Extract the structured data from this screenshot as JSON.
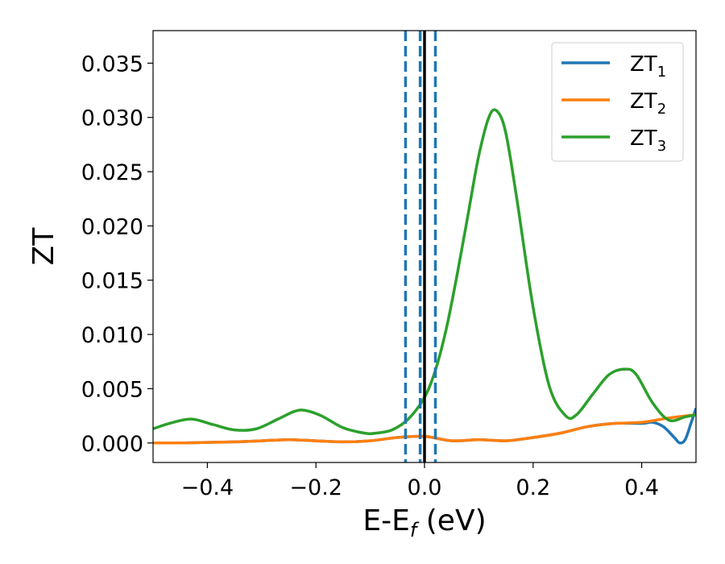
{
  "chart_data": {
    "type": "line",
    "title": "",
    "xlabel": "E-E",
    "xlabel_sub": "f",
    "xlabel_unit": " (eV)",
    "ylabel": "ZT",
    "xlim": [
      -0.5,
      0.5
    ],
    "ylim": [
      -0.0018,
      0.038
    ],
    "xticks": [
      -0.4,
      -0.2,
      0.0,
      0.2,
      0.4
    ],
    "xtick_labels": [
      "−0.4",
      "−0.2",
      "0.0",
      "0.2",
      "0.4"
    ],
    "yticks": [
      0.0,
      0.005,
      0.01,
      0.015,
      0.02,
      0.025,
      0.03,
      0.035
    ],
    "ytick_labels": [
      "0.000",
      "0.005",
      "0.010",
      "0.015",
      "0.020",
      "0.025",
      "0.030",
      "0.035"
    ],
    "grid": false,
    "legend_position": "top-right",
    "series": [
      {
        "name": "ZT",
        "name_sub": "1",
        "color": "#1f77b4",
        "x": [
          -0.5,
          -0.45,
          -0.4,
          -0.35,
          -0.3,
          -0.25,
          -0.2,
          -0.15,
          -0.1,
          -0.05,
          0.0,
          0.05,
          0.1,
          0.15,
          0.2,
          0.25,
          0.3,
          0.35,
          0.4,
          0.42,
          0.44,
          0.46,
          0.47,
          0.48,
          0.49,
          0.5
        ],
        "y": [
          0.0,
          0.0,
          5e-05,
          0.0001,
          0.0002,
          0.0003,
          0.0002,
          0.0001,
          0.0002,
          0.0005,
          0.0006,
          0.0002,
          0.0003,
          0.0002,
          0.0005,
          0.0009,
          0.0015,
          0.0018,
          0.0018,
          0.0019,
          0.0015,
          0.0005,
          0.0,
          0.0003,
          0.0017,
          0.0032
        ]
      },
      {
        "name": "ZT",
        "name_sub": "2",
        "color": "#ff7f0e",
        "x": [
          -0.5,
          -0.45,
          -0.4,
          -0.35,
          -0.3,
          -0.25,
          -0.2,
          -0.15,
          -0.1,
          -0.05,
          0.0,
          0.05,
          0.1,
          0.15,
          0.2,
          0.25,
          0.3,
          0.35,
          0.4,
          0.45,
          0.5
        ],
        "y": [
          0.0,
          0.0,
          5e-05,
          0.0001,
          0.0002,
          0.0003,
          0.0002,
          0.0001,
          0.0002,
          0.0005,
          0.0006,
          0.0002,
          0.0003,
          0.0002,
          0.0005,
          0.0009,
          0.0015,
          0.0018,
          0.0019,
          0.0023,
          0.0026
        ]
      },
      {
        "name": "ZT",
        "name_sub": "3",
        "color": "#2ca02c",
        "x": [
          -0.5,
          -0.47,
          -0.43,
          -0.39,
          -0.35,
          -0.31,
          -0.27,
          -0.24,
          -0.22,
          -0.19,
          -0.15,
          -0.11,
          -0.09,
          -0.06,
          -0.03,
          0.0,
          0.02,
          0.04,
          0.06,
          0.08,
          0.1,
          0.12,
          0.135,
          0.15,
          0.17,
          0.2,
          0.23,
          0.26,
          0.28,
          0.31,
          0.34,
          0.37,
          0.39,
          0.42,
          0.45,
          0.48,
          0.5
        ],
        "y": [
          0.0013,
          0.0018,
          0.0022,
          0.0017,
          0.0012,
          0.0013,
          0.0022,
          0.0029,
          0.003,
          0.0025,
          0.0014,
          0.0009,
          0.0009,
          0.0012,
          0.0022,
          0.0042,
          0.0067,
          0.0105,
          0.0155,
          0.021,
          0.0265,
          0.0302,
          0.0305,
          0.0285,
          0.0225,
          0.0125,
          0.0052,
          0.0025,
          0.0026,
          0.0045,
          0.0063,
          0.0068,
          0.0063,
          0.0037,
          0.0021,
          0.0024,
          0.0026
        ]
      }
    ],
    "vlines": [
      {
        "x": 0.0,
        "style": "solid",
        "color": "#000000"
      },
      {
        "x": -0.035,
        "style": "dashed",
        "color": "#1f77b4"
      },
      {
        "x": -0.008,
        "style": "dashed",
        "color": "#1f77b4"
      },
      {
        "x": 0.02,
        "style": "dashed",
        "color": "#1f77b4"
      }
    ]
  }
}
